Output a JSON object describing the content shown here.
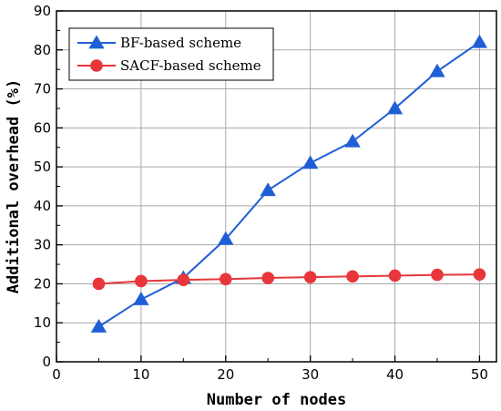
{
  "chart_data": {
    "type": "line",
    "title": "",
    "xlabel": "Number of nodes",
    "ylabel": "Additional overhead (%)",
    "xlim": [
      0,
      52
    ],
    "ylim": [
      0,
      90
    ],
    "xticks": [
      0,
      10,
      20,
      30,
      40,
      50
    ],
    "yticks": [
      0,
      10,
      20,
      30,
      40,
      50,
      60,
      70,
      80,
      90
    ],
    "grid": true,
    "legend_position": "top-left",
    "x": [
      5,
      10,
      15,
      20,
      25,
      30,
      35,
      40,
      45,
      50
    ],
    "series": [
      {
        "name": "BF-based scheme",
        "marker": "triangle",
        "color": "#1f5fd6",
        "values": [
          9,
          16,
          21.5,
          31.5,
          44,
          51,
          56.5,
          65,
          74.5,
          82
        ]
      },
      {
        "name": "SACF-based scheme",
        "marker": "circle",
        "color": "#e8363a",
        "values": [
          20,
          20.7,
          21,
          21.2,
          21.5,
          21.7,
          21.9,
          22.1,
          22.3,
          22.4
        ]
      }
    ]
  }
}
